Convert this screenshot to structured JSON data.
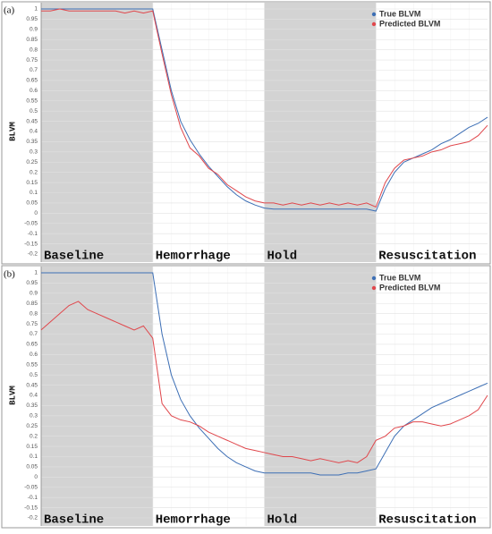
{
  "chart_data": [
    {
      "type": "line",
      "panel_label": "(a)",
      "ylabel": "BLVM",
      "ylim": [
        -0.2,
        1
      ],
      "yticks": [
        -0.2,
        -0.15,
        -0.1,
        -0.05,
        0,
        0.05,
        0.1,
        0.15,
        0.2,
        0.25,
        0.3,
        0.35,
        0.4,
        0.45,
        0.5,
        0.55,
        0.6,
        0.65,
        0.7,
        0.75,
        0.8,
        0.85,
        0.9,
        0.95,
        1
      ],
      "grid": true,
      "legend": "upper right",
      "phases": [
        {
          "label": "Baseline",
          "shaded": true
        },
        {
          "label": "Hemorrhage",
          "shaded": false
        },
        {
          "label": "Hold",
          "shaded": true
        },
        {
          "label": "Resuscitation",
          "shaded": false
        }
      ],
      "series": [
        {
          "name": "True BLVM",
          "color": "#3d6fb5",
          "values": [
            1,
            1,
            1,
            1,
            1,
            1,
            1,
            1,
            1,
            1,
            1,
            1,
            1,
            0.8,
            0.6,
            0.45,
            0.36,
            0.29,
            0.23,
            0.18,
            0.13,
            0.09,
            0.06,
            0.04,
            0.025,
            0.02,
            0.02,
            0.02,
            0.02,
            0.02,
            0.02,
            0.02,
            0.02,
            0.02,
            0.02,
            0.02,
            0.01,
            0.12,
            0.2,
            0.25,
            0.27,
            0.29,
            0.31,
            0.34,
            0.36,
            0.39,
            0.42,
            0.44,
            0.47
          ]
        },
        {
          "name": "Predicted BLVM",
          "color": "#e0474c",
          "values": [
            0.99,
            0.99,
            1,
            0.99,
            0.99,
            0.99,
            0.99,
            0.99,
            0.99,
            0.98,
            0.99,
            0.98,
            0.99,
            0.78,
            0.58,
            0.42,
            0.32,
            0.28,
            0.22,
            0.19,
            0.14,
            0.11,
            0.08,
            0.06,
            0.05,
            0.05,
            0.04,
            0.05,
            0.04,
            0.05,
            0.04,
            0.05,
            0.04,
            0.05,
            0.04,
            0.05,
            0.03,
            0.15,
            0.22,
            0.26,
            0.27,
            0.28,
            0.3,
            0.31,
            0.33,
            0.34,
            0.35,
            0.38,
            0.43
          ]
        }
      ]
    },
    {
      "type": "line",
      "panel_label": "(b)",
      "ylabel": "BLVM",
      "ylim": [
        -0.2,
        1
      ],
      "yticks": [
        -0.2,
        -0.15,
        -0.1,
        -0.05,
        0,
        0.05,
        0.1,
        0.15,
        0.2,
        0.25,
        0.3,
        0.35,
        0.4,
        0.45,
        0.5,
        0.55,
        0.6,
        0.65,
        0.7,
        0.75,
        0.8,
        0.85,
        0.9,
        0.95,
        1
      ],
      "grid": true,
      "legend": "upper right",
      "phases": [
        {
          "label": "Baseline",
          "shaded": true
        },
        {
          "label": "Hemorrhage",
          "shaded": false
        },
        {
          "label": "Hold",
          "shaded": true
        },
        {
          "label": "Resuscitation",
          "shaded": false
        }
      ],
      "series": [
        {
          "name": "True BLVM",
          "color": "#3d6fb5",
          "values": [
            1,
            1,
            1,
            1,
            1,
            1,
            1,
            1,
            1,
            1,
            1,
            1,
            1,
            0.7,
            0.5,
            0.38,
            0.3,
            0.24,
            0.19,
            0.14,
            0.1,
            0.07,
            0.05,
            0.03,
            0.02,
            0.02,
            0.02,
            0.02,
            0.02,
            0.02,
            0.01,
            0.01,
            0.01,
            0.02,
            0.02,
            0.03,
            0.04,
            0.12,
            0.2,
            0.25,
            0.28,
            0.31,
            0.34,
            0.36,
            0.38,
            0.4,
            0.42,
            0.44,
            0.46
          ]
        },
        {
          "name": "Predicted BLVM",
          "color": "#e0474c",
          "values": [
            0.72,
            0.76,
            0.8,
            0.84,
            0.86,
            0.82,
            0.8,
            0.78,
            0.76,
            0.74,
            0.72,
            0.74,
            0.68,
            0.36,
            0.3,
            0.28,
            0.27,
            0.25,
            0.22,
            0.2,
            0.18,
            0.16,
            0.14,
            0.13,
            0.12,
            0.11,
            0.1,
            0.1,
            0.09,
            0.08,
            0.09,
            0.08,
            0.07,
            0.08,
            0.07,
            0.1,
            0.18,
            0.2,
            0.24,
            0.25,
            0.27,
            0.27,
            0.26,
            0.25,
            0.26,
            0.28,
            0.3,
            0.33,
            0.4
          ]
        }
      ]
    }
  ]
}
